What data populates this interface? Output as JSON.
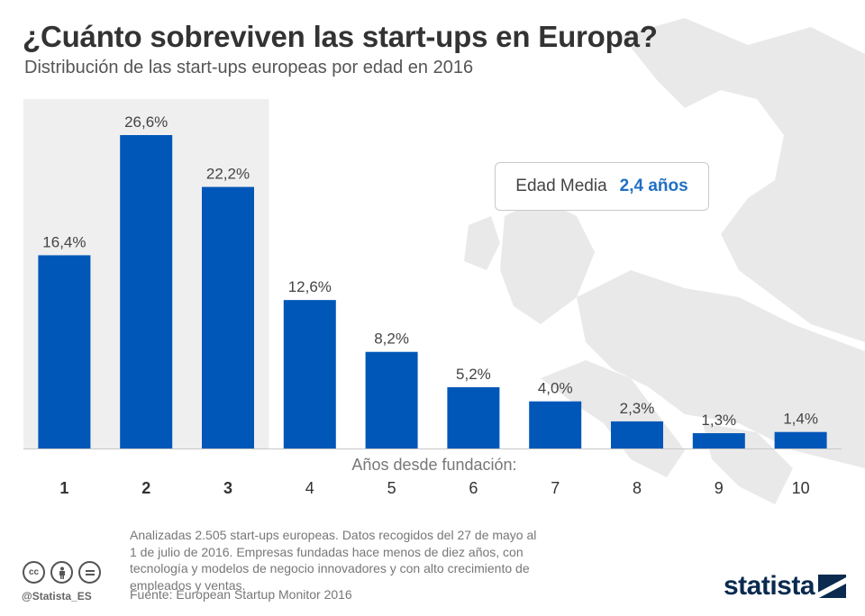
{
  "title": "¿Cuánto sobreviven las start-ups en Europa?",
  "subtitle": "Distribución de las start-ups europeas por edad en 2016",
  "average_box": {
    "label": "Edad Media",
    "value": "2,4 años"
  },
  "chart_data": {
    "type": "bar",
    "xlabel": "Años desde fundación:",
    "categories": [
      "1",
      "2",
      "3",
      "4",
      "5",
      "6",
      "7",
      "8",
      "9",
      "10"
    ],
    "values": [
      16.4,
      26.6,
      22.2,
      12.6,
      8.2,
      5.2,
      4.0,
      2.3,
      1.3,
      1.4
    ],
    "value_labels": [
      "16,4%",
      "26,6%",
      "22,2%",
      "12,6%",
      "8,2%",
      "5,2%",
      "4,0%",
      "2,3%",
      "1,3%",
      "1,4%"
    ],
    "highlighted_categories": [
      "1",
      "2",
      "3"
    ],
    "ylim": [
      0,
      30
    ],
    "grid": false,
    "bar_color": "#0057b8",
    "highlight_band_color": "#efefef"
  },
  "notes": "Analizadas 2.505 start-ups europeas. Datos recogidos del 27 de mayo al 1 de julio de 2016. Empresas fundadas hace menos de diez años, con tecnología y modelos de negocio innovadores y con alto crecimiento de empleados y ventas.",
  "source": "Fuente: European Startup Monitor 2016",
  "footer": {
    "handle": "@Statista_ES",
    "brand": "statista",
    "license_icons": [
      "cc-icon",
      "by-icon",
      "nd-icon"
    ]
  }
}
